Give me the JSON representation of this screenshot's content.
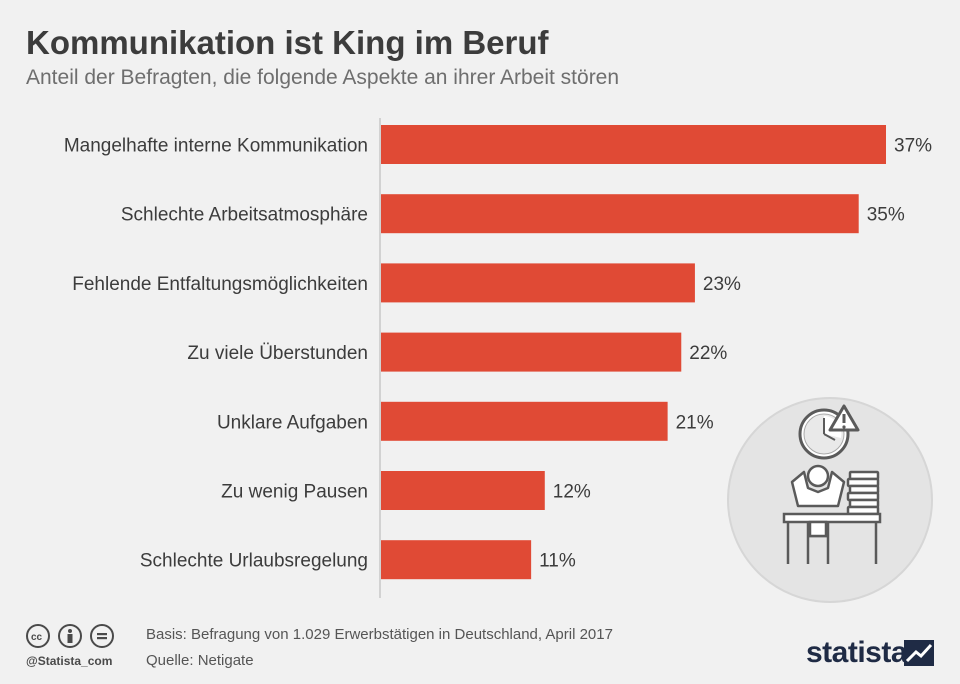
{
  "header": {
    "title": "Kommunikation ist King im Beruf",
    "subtitle": "Anteil der Befragten, die folgende Aspekte an ihrer Arbeit stören"
  },
  "chart_data": {
    "type": "bar",
    "orientation": "horizontal",
    "categories": [
      "Mangelhafte interne Kommunikation",
      "Schlechte Arbeitsatmosphäre",
      "Fehlende Entfaltungsmöglichkeiten",
      "Zu viele Überstunden",
      "Unklare Aufgaben",
      "Zu wenig Pausen",
      "Schlechte Urlaubsregelung"
    ],
    "values": [
      37,
      35,
      23,
      22,
      21,
      12,
      11
    ],
    "value_labels": [
      "37%",
      "35%",
      "23%",
      "22%",
      "21%",
      "12%",
      "11%"
    ],
    "unit": "%",
    "xlim": [
      0,
      37
    ],
    "grid": false,
    "bar_color": "#e04a35"
  },
  "footer": {
    "basis": "Basis: Befragung von 1.029 Erwerbstätigen in Deutschland, April 2017",
    "source": "Quelle: Netigate",
    "handle": "@Statista_com",
    "brand": "statista",
    "license_icons": [
      "cc-icon",
      "by-icon",
      "nd-icon"
    ]
  },
  "illustration": {
    "icons": [
      "clock-icon",
      "warning-icon",
      "stressed-person-icon",
      "paper-stack-icon",
      "desk-icon"
    ]
  },
  "colors": {
    "background": "#f1f1f1",
    "text": "#3c3c3c",
    "bar": "#e04a35",
    "brand": "#1f2b45"
  }
}
